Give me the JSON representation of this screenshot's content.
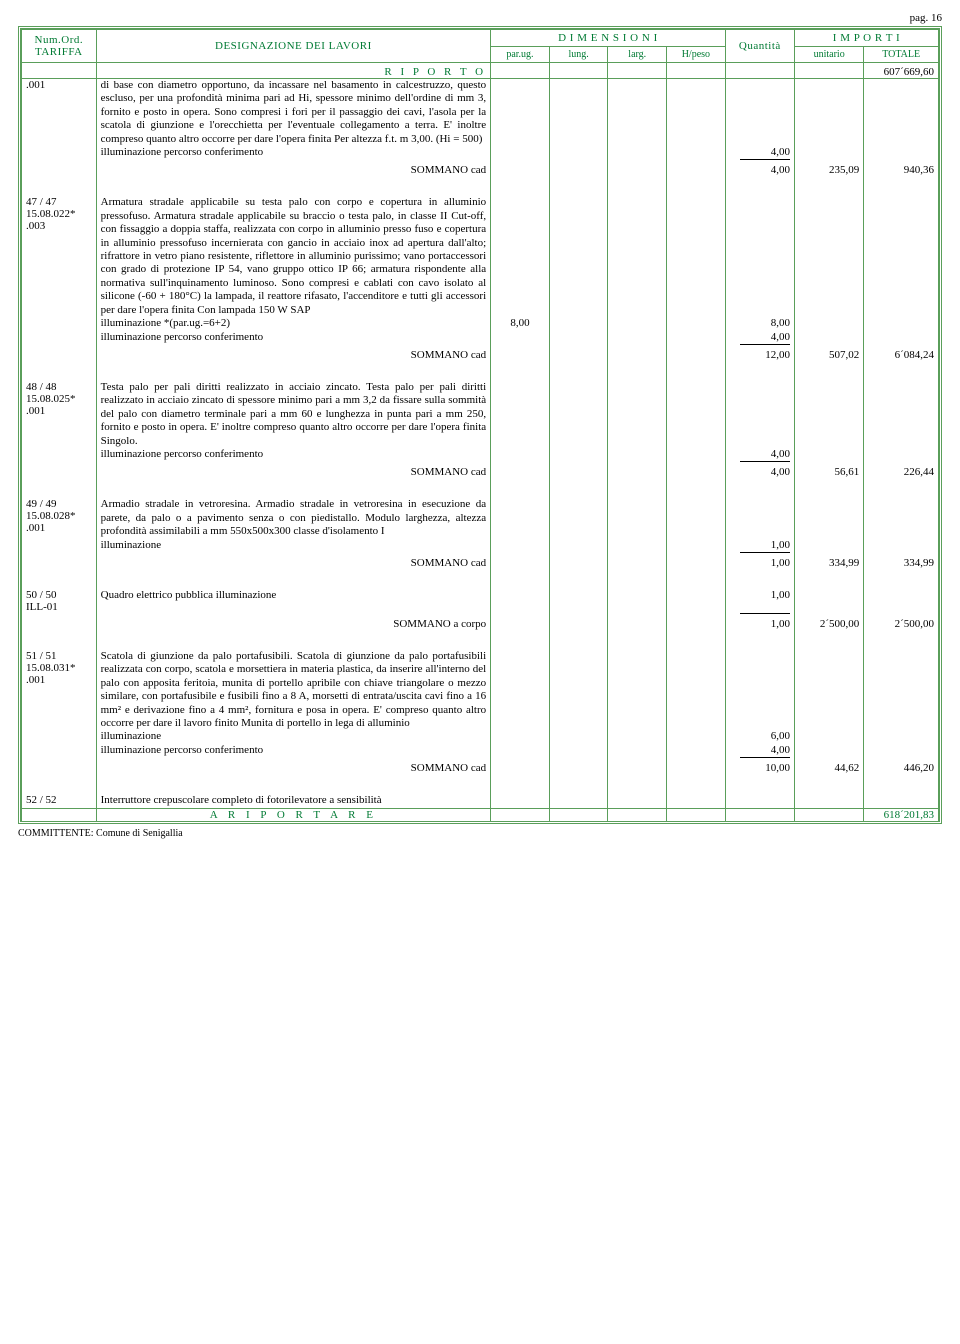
{
  "page_label": "pag. 16",
  "header": {
    "col1a": "Num.Ord.",
    "col1b": "TARIFFA",
    "col2": "DESIGNAZIONE DEI LAVORI",
    "dim_header": "D I M E N S I O N I",
    "dim_cols": [
      "par.ug.",
      "lung.",
      "larg.",
      "H/peso"
    ],
    "qta": "Quantità",
    "imp_header": "I M P O R T I",
    "imp_cols": [
      "unitario",
      "TOTALE"
    ]
  },
  "riporto": {
    "label": "R I P O R T O",
    "value": "607´669,60"
  },
  "rows": [
    {
      "tariffa": ".001",
      "desc": "di base con diametro opportuno, da incassare nel basamento in calcestruzzo, questo escluso, per una profondità minima pari ad Hi, spessore minimo dell'ordine di mm 3, fornito e posto in opera. Sono compresi i fori per il passaggio dei cavi, l'asola per la scatola di giunzione e l'orecchietta per l'eventuale collegamento a terra. E' inoltre compreso quanto altro occorre per dare l'opera finita Per altezza f.t. m 3,00. (Hi = 500)",
      "measure_lines": [
        {
          "text": "illuminazione percorso conferimento",
          "parug": "",
          "qta": "4,00"
        }
      ],
      "sommano": {
        "label": "SOMMANO cad",
        "qta": "4,00",
        "unit": "235,09",
        "tot": "940,36"
      }
    },
    {
      "tariffa": "47 / 47\n15.08.022*\n.003",
      "desc": "Armatura stradale applicabile su testa palo con corpo e copertura in alluminio pressofuso. Armatura stradale applicabile su braccio o testa palo, in classe II Cut-off, con fissaggio a doppia staffa, realizzata con corpo in alluminio presso fuso e copertura in alluminio pressofuso incernierata con gancio in acciaio inox ad apertura dall'alto; rifrattore in vetro piano resistente, riflettore in alluminio purissimo; vano portaccessori con grado di protezione IP 54, vano gruppo ottico IP 66; armatura rispondente alla normativa sull'inquinamento luminoso. Sono compresi e cablati con cavo isolato al silicone (-60 + 180°C) la lampada, il reattore rifasato, l'accenditore e tutti gli accessori per dare l'opera finita Con lampada 150 W SAP",
      "measure_lines": [
        {
          "text": "illuminazione *(par.ug.=6+2)",
          "parug": "8,00",
          "qta": "8,00"
        },
        {
          "text": "illuminazione percorso conferimento",
          "parug": "",
          "qta": "4,00"
        }
      ],
      "sommano": {
        "label": "SOMMANO cad",
        "qta": "12,00",
        "unit": "507,02",
        "tot": "6´084,24"
      }
    },
    {
      "tariffa": "48 / 48\n15.08.025*\n.001",
      "desc": "Testa palo per pali diritti realizzato in acciaio zincato. Testa palo per pali diritti realizzato in acciaio zincato di spessore minimo pari a mm 3,2 da fissare sulla sommità del palo con diametro terminale pari a mm 60 e lunghezza in punta pari a mm 250, fornito e posto in opera. E' inoltre compreso quanto altro occorre per dare l'opera finita Singolo.",
      "measure_lines": [
        {
          "text": "illuminazione percorso conferimento",
          "parug": "",
          "qta": "4,00"
        }
      ],
      "sommano": {
        "label": "SOMMANO cad",
        "qta": "4,00",
        "unit": "56,61",
        "tot": "226,44"
      }
    },
    {
      "tariffa": "49 / 49\n15.08.028*\n.001",
      "desc": "Armadio stradale in vetroresina. Armadio stradale in vetroresina in esecuzione da parete, da palo o a pavimento senza o con piedistallo. Modulo larghezza, altezza profondità assimilabili a mm 550x500x300 classe d'isolamento I",
      "measure_lines": [
        {
          "text": "illuminazione",
          "parug": "",
          "qta": "1,00"
        }
      ],
      "sommano": {
        "label": "SOMMANO cad",
        "qta": "1,00",
        "unit": "334,99",
        "tot": "334,99"
      }
    },
    {
      "tariffa": "50 / 50\nILL-01",
      "desc": "Quadro elettrico pubblica illuminazione",
      "measure_lines": [
        {
          "text": "",
          "parug": "",
          "qta": "1,00"
        }
      ],
      "sommano": {
        "label": "SOMMANO a corpo",
        "qta": "1,00",
        "unit": "2´500,00",
        "tot": "2´500,00"
      }
    },
    {
      "tariffa": "51 / 51\n15.08.031*\n.001",
      "desc": "Scatola di giunzione da palo portafusibili. Scatola di giunzione da palo portafusibili realizzata con corpo, scatola e morsettiera in materia plastica, da inserire all'interno del palo con apposita feritoia, munita di portello apribile con chiave triangolare o mezzo similare, con portafusibile e fusibili fino a 8 A, morsetti di entrata/uscita cavi fino a 16 mm² e derivazione fino a 4 mm², fornitura e posa in opera. E' compreso quanto altro occorre per dare il lavoro finito Munita di portello in lega di alluminio",
      "measure_lines": [
        {
          "text": "illuminazione",
          "parug": "",
          "qta": "6,00"
        },
        {
          "text": "illuminazione percorso conferimento",
          "parug": "",
          "qta": "4,00"
        }
      ],
      "sommano": {
        "label": "SOMMANO cad",
        "qta": "10,00",
        "unit": "44,62",
        "tot": "446,20"
      }
    },
    {
      "tariffa": "52 / 52",
      "desc": "Interruttore crepuscolare completo di fotorilevatore a sensibilità",
      "measure_lines": [],
      "sommano": null
    }
  ],
  "ariportare": {
    "label": "A   R I P O R T A R E",
    "value": "618´201,83"
  },
  "committente": "COMMITTENTE: Comune di Senigallia",
  "colors": {
    "border": "#5a9e5a",
    "header_text": "#007a33"
  }
}
